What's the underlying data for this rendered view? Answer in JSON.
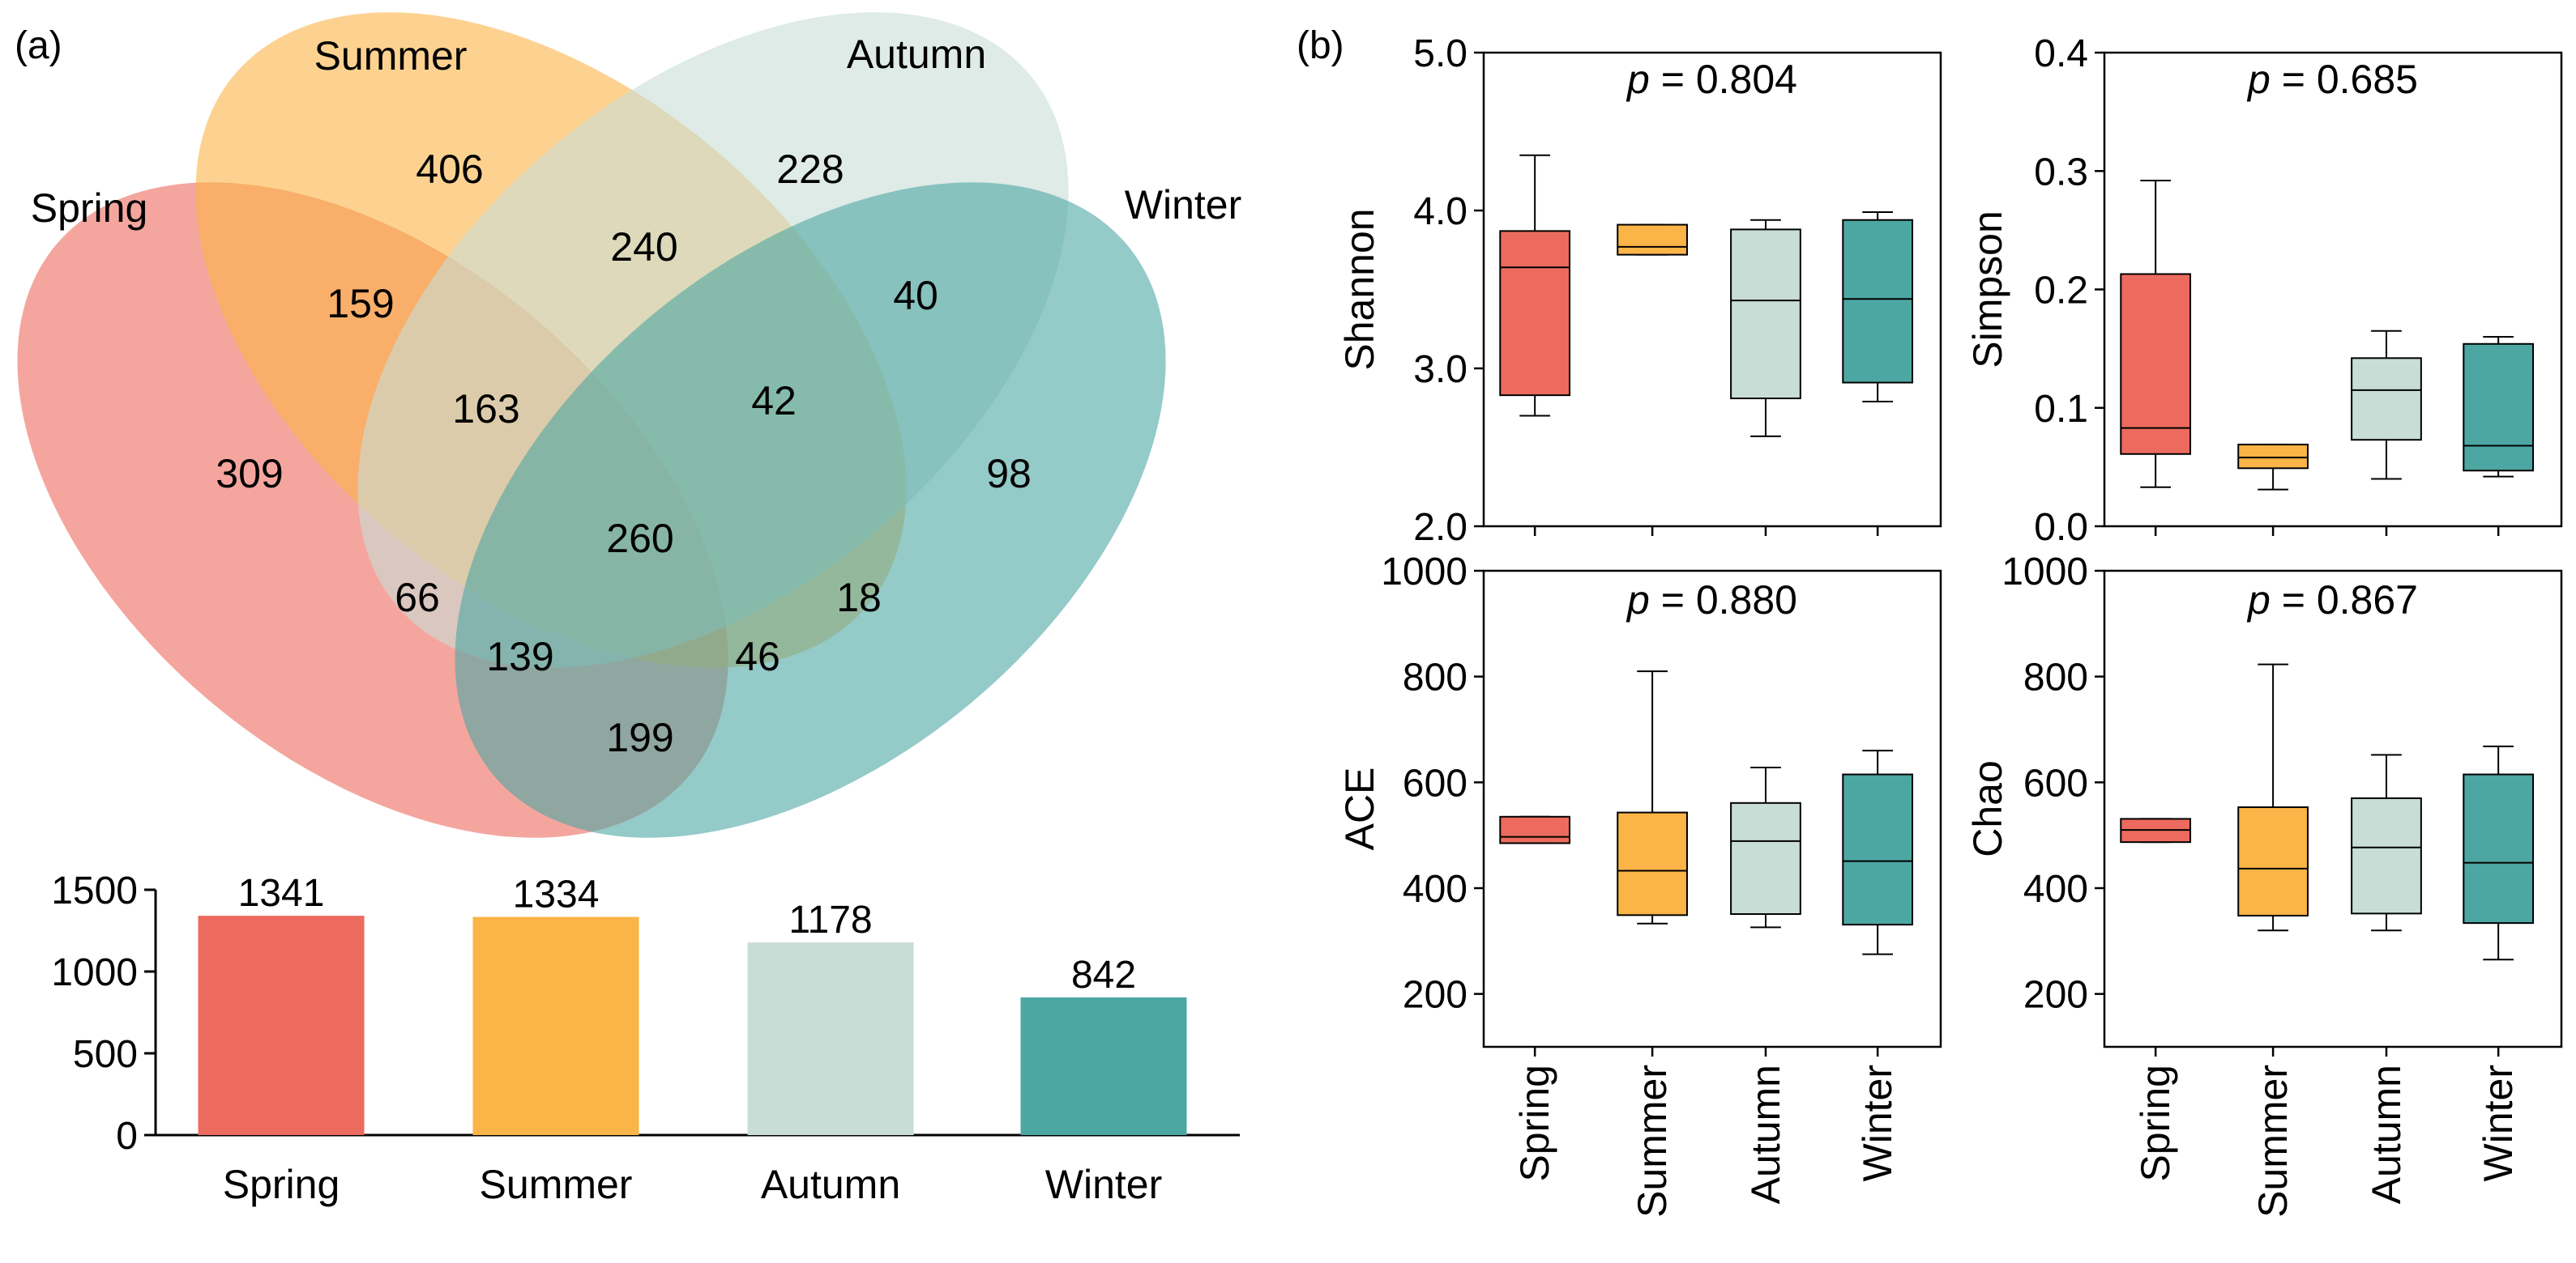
{
  "panel_a_label": "(a)",
  "panel_b_label": "(b)",
  "colors": {
    "spring": "#EC6B5E",
    "summer": "#FBB447",
    "autumn": "#C8DDD6",
    "winter": "#4CA7A3",
    "axis": "#000000"
  },
  "venn": {
    "sets": [
      {
        "key": "spring",
        "label": "Spring"
      },
      {
        "key": "summer",
        "label": "Summer"
      },
      {
        "key": "autumn",
        "label": "Autumn"
      },
      {
        "key": "winter",
        "label": "Winter"
      }
    ],
    "regions": [
      {
        "sets": [
          "Spring"
        ],
        "value": "309"
      },
      {
        "sets": [
          "Summer"
        ],
        "value": "406"
      },
      {
        "sets": [
          "Autumn"
        ],
        "value": "228"
      },
      {
        "sets": [
          "Winter"
        ],
        "value": "98"
      },
      {
        "sets": [
          "Spring",
          "Summer"
        ],
        "value": "159"
      },
      {
        "sets": [
          "Summer",
          "Autumn"
        ],
        "value": "240"
      },
      {
        "sets": [
          "Autumn",
          "Winter"
        ],
        "value": "40"
      },
      {
        "sets": [
          "Spring",
          "Summer",
          "Autumn"
        ],
        "value": "163"
      },
      {
        "sets": [
          "Summer",
          "Autumn",
          "Winter"
        ],
        "value": "42"
      },
      {
        "sets": [
          "Spring",
          "Summer",
          "Autumn",
          "Winter"
        ],
        "value": "260"
      },
      {
        "sets": [
          "Spring",
          "Autumn"
        ],
        "value": "66"
      },
      {
        "sets": [
          "Summer",
          "Winter"
        ],
        "value": "18"
      },
      {
        "sets": [
          "Spring",
          "Autumn",
          "Winter"
        ],
        "value": "139"
      },
      {
        "sets": [
          "Spring",
          "Summer",
          "Winter"
        ],
        "value": "46"
      },
      {
        "sets": [
          "Spring",
          "Winter"
        ],
        "value": "199"
      }
    ]
  },
  "chart_data": [
    {
      "type": "bar",
      "id": "totals",
      "categories": [
        "Spring",
        "Summer",
        "Autumn",
        "Winter"
      ],
      "values": [
        1341,
        1334,
        1178,
        842
      ],
      "value_labels": [
        "1341",
        "1334",
        "1178",
        "842"
      ],
      "ylim": [
        0,
        1500
      ],
      "yticks": [
        0,
        500,
        1000,
        1500
      ],
      "ytick_labels": [
        "0",
        "500",
        "1000",
        "1500"
      ],
      "title": "",
      "xlabel": "",
      "ylabel": ""
    },
    {
      "type": "box",
      "id": "shannon",
      "ylabel": "Shannon",
      "p_prefix": "p",
      "p_text": " = 0.804",
      "ylim": [
        2.0,
        5.0
      ],
      "yticks": [
        2.0,
        3.0,
        4.0,
        5.0
      ],
      "ytick_labels": [
        "2.0",
        "3.0",
        "4.0",
        "5.0"
      ],
      "categories": [
        "Spring",
        "Summer",
        "Autumn",
        "Winter"
      ],
      "boxes": [
        {
          "min": 2.7,
          "q1": 2.83,
          "median": 3.64,
          "q3": 3.87,
          "max": 4.35
        },
        {
          "min": 3.72,
          "q1": 3.72,
          "median": 3.77,
          "q3": 3.91,
          "max": 3.91
        },
        {
          "min": 2.57,
          "q1": 2.81,
          "median": 3.43,
          "q3": 3.88,
          "max": 3.94
        },
        {
          "min": 2.79,
          "q1": 2.91,
          "median": 3.44,
          "q3": 3.94,
          "max": 3.99
        }
      ]
    },
    {
      "type": "box",
      "id": "simpson",
      "ylabel": "Simpson",
      "p_prefix": "p",
      "p_text": " = 0.685",
      "ylim": [
        0.0,
        0.4
      ],
      "yticks": [
        0.0,
        0.1,
        0.2,
        0.3,
        0.4
      ],
      "ytick_labels": [
        "0.0",
        "0.1",
        "0.2",
        "0.3",
        "0.4"
      ],
      "categories": [
        "Spring",
        "Summer",
        "Autumn",
        "Winter"
      ],
      "boxes": [
        {
          "min": 0.033,
          "q1": 0.061,
          "median": 0.083,
          "q3": 0.213,
          "max": 0.292
        },
        {
          "min": 0.031,
          "q1": 0.049,
          "median": 0.058,
          "q3": 0.069,
          "max": 0.069
        },
        {
          "min": 0.04,
          "q1": 0.073,
          "median": 0.115,
          "q3": 0.142,
          "max": 0.165
        },
        {
          "min": 0.042,
          "q1": 0.047,
          "median": 0.068,
          "q3": 0.154,
          "max": 0.16
        }
      ]
    },
    {
      "type": "box",
      "id": "ace",
      "ylabel": "ACE",
      "p_prefix": "p",
      "p_text": " = 0.880",
      "ylim": [
        100,
        1000
      ],
      "yticks": [
        200,
        400,
        600,
        800,
        1000
      ],
      "ytick_labels": [
        "200",
        "400",
        "600",
        "800",
        "1000"
      ],
      "categories": [
        "Spring",
        "Summer",
        "Autumn",
        "Winter"
      ],
      "boxes": [
        {
          "min": 485,
          "q1": 485,
          "median": 497,
          "q3": 535,
          "max": 535
        },
        {
          "min": 333,
          "q1": 349,
          "median": 433,
          "q3": 543,
          "max": 810
        },
        {
          "min": 326,
          "q1": 351,
          "median": 489,
          "q3": 561,
          "max": 628
        },
        {
          "min": 275,
          "q1": 331,
          "median": 451,
          "q3": 615,
          "max": 660
        }
      ]
    },
    {
      "type": "box",
      "id": "chao",
      "ylabel": "Chao",
      "p_prefix": "p",
      "p_text": " = 0.867",
      "ylim": [
        100,
        1000
      ],
      "yticks": [
        200,
        400,
        600,
        800,
        1000
      ],
      "ytick_labels": [
        "200",
        "400",
        "600",
        "800",
        "1000"
      ],
      "categories": [
        "Spring",
        "Summer",
        "Autumn",
        "Winter"
      ],
      "boxes": [
        {
          "min": 487,
          "q1": 487,
          "median": 510,
          "q3": 531,
          "max": 531
        },
        {
          "min": 320,
          "q1": 348,
          "median": 437,
          "q3": 553,
          "max": 823
        },
        {
          "min": 320,
          "q1": 352,
          "median": 477,
          "q3": 570,
          "max": 652
        },
        {
          "min": 265,
          "q1": 334,
          "median": 448,
          "q3": 615,
          "max": 668
        }
      ]
    }
  ]
}
